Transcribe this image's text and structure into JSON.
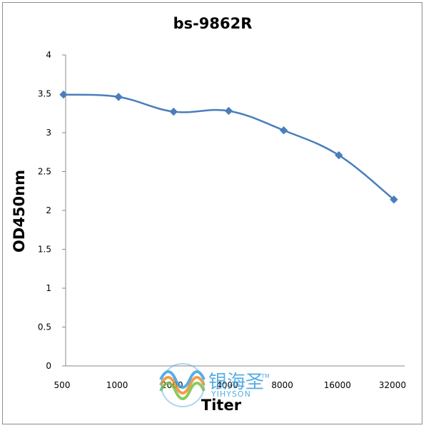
{
  "chart_data": {
    "type": "line",
    "title": "bs-9862R",
    "xlabel": "Titer",
    "ylabel": "OD450nm",
    "categories": [
      "500",
      "1000",
      "2000",
      "4000",
      "8000",
      "16000",
      "32000"
    ],
    "series": [
      {
        "values": [
          3.49,
          3.46,
          3.27,
          3.28,
          3.03,
          2.71,
          2.14
        ],
        "color": "#4a7ebb",
        "marker": "diamond"
      }
    ],
    "yticks": [
      "0",
      "0.5",
      "1",
      "1.5",
      "2",
      "2.5",
      "3",
      "3.5",
      "4"
    ],
    "ylim": [
      0,
      4
    ],
    "grid": false,
    "legend": "none"
  },
  "watermark": {
    "brand_cn": "银海圣",
    "brand_en": "YIHYSON",
    "trademark": "TM"
  }
}
